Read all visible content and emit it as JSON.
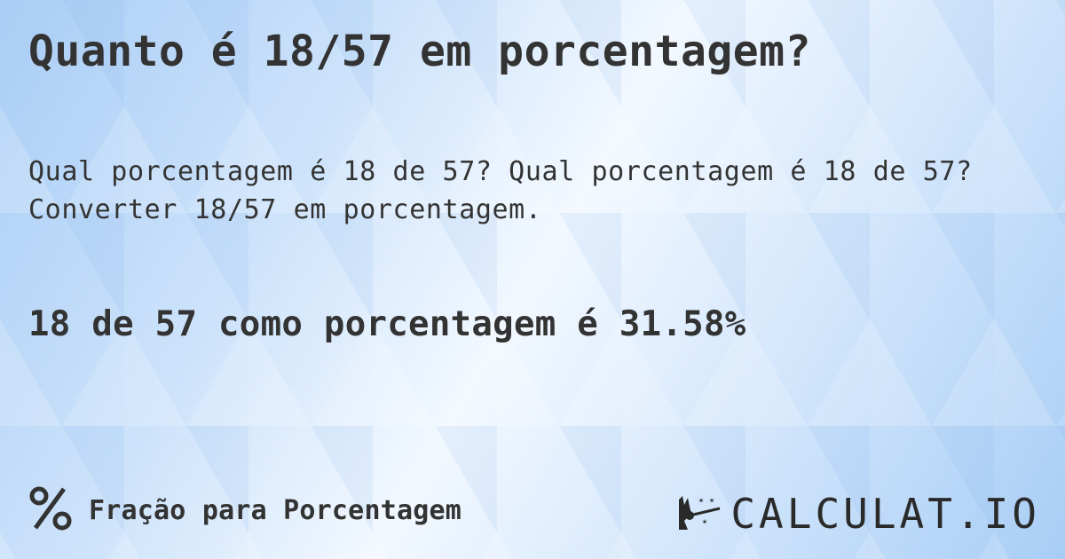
{
  "title": "Quanto é 18/57 em porcentagem?",
  "subtitle": "Qual porcentagem é 18 de 57? Qual porcentagem é 18 de 57? Converter 18/57 em porcentagem.",
  "result": "18 de 57 como porcentagem é 31.58%",
  "footer": {
    "icon": "percent-icon",
    "label": "Fração para Porcentagem"
  },
  "logo": {
    "icon": "magic-hand-wand-icon",
    "text": "CALCULAT.IO"
  },
  "colors": {
    "text": "#333333",
    "background": "#cfe4fb"
  }
}
